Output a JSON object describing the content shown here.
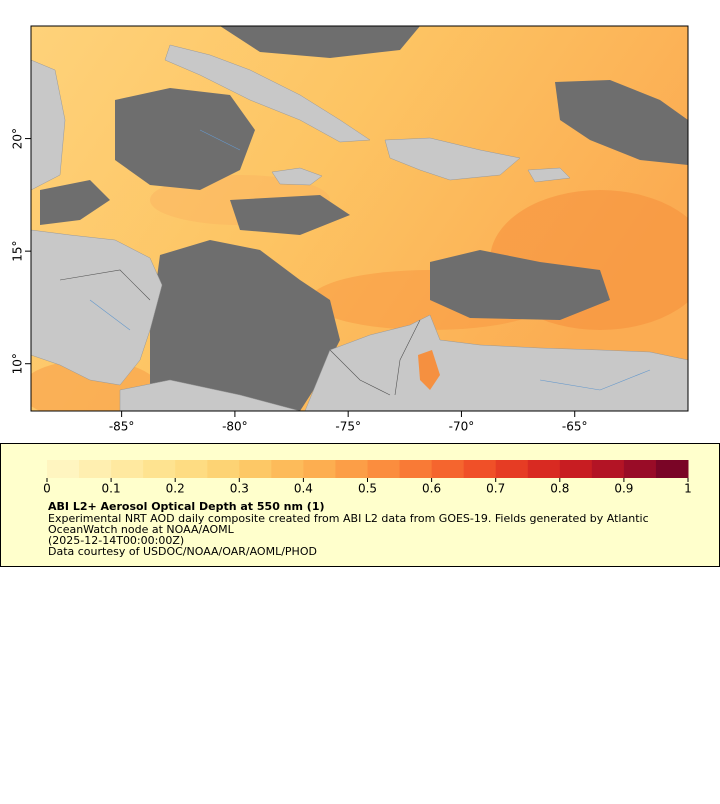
{
  "map": {
    "xlim": [
      -89,
      -60
    ],
    "ylim": [
      7.9,
      25
    ],
    "xticks": [
      {
        "value": -85,
        "label": "-85°"
      },
      {
        "value": -80,
        "label": "-80°"
      },
      {
        "value": -75,
        "label": "-75°"
      },
      {
        "value": -70,
        "label": "-70°"
      },
      {
        "value": -65,
        "label": "-65°"
      }
    ],
    "yticks": [
      {
        "value": 10,
        "label": "10°"
      },
      {
        "value": 15,
        "label": "15°"
      },
      {
        "value": 20,
        "label": "20°"
      }
    ]
  },
  "legend": {
    "colorbar": {
      "range": [
        0,
        1
      ],
      "ticks": [
        0,
        0.1,
        0.2,
        0.3,
        0.4,
        0.5,
        0.6,
        0.7,
        0.8,
        0.9,
        1
      ],
      "colors": [
        "#fff5c0",
        "#ffefb0",
        "#ffe9a0",
        "#fee390",
        "#fedc82",
        "#fdd374",
        "#fdc866",
        "#fdbb5a",
        "#fdae50",
        "#fc9e47",
        "#fb8d3e",
        "#f97a36",
        "#f5652e",
        "#f05028",
        "#e63c24",
        "#d92a22",
        "#c81d22",
        "#b31425",
        "#990c27",
        "#7a0526"
      ]
    },
    "title": "ABI L2+ Aerosol Optical Depth at 550 nm (1)",
    "lines": [
      "Experimental NRT AOD daily composite created from ABI L2 data from GOES-19. Fields generated by Atlantic",
      "OceanWatch node at NOAA/AOML",
      "(2025-12-14T00:00:00Z)",
      "Data courtesy of USDOC/NOAA/OAR/AOML/PHOD"
    ]
  }
}
